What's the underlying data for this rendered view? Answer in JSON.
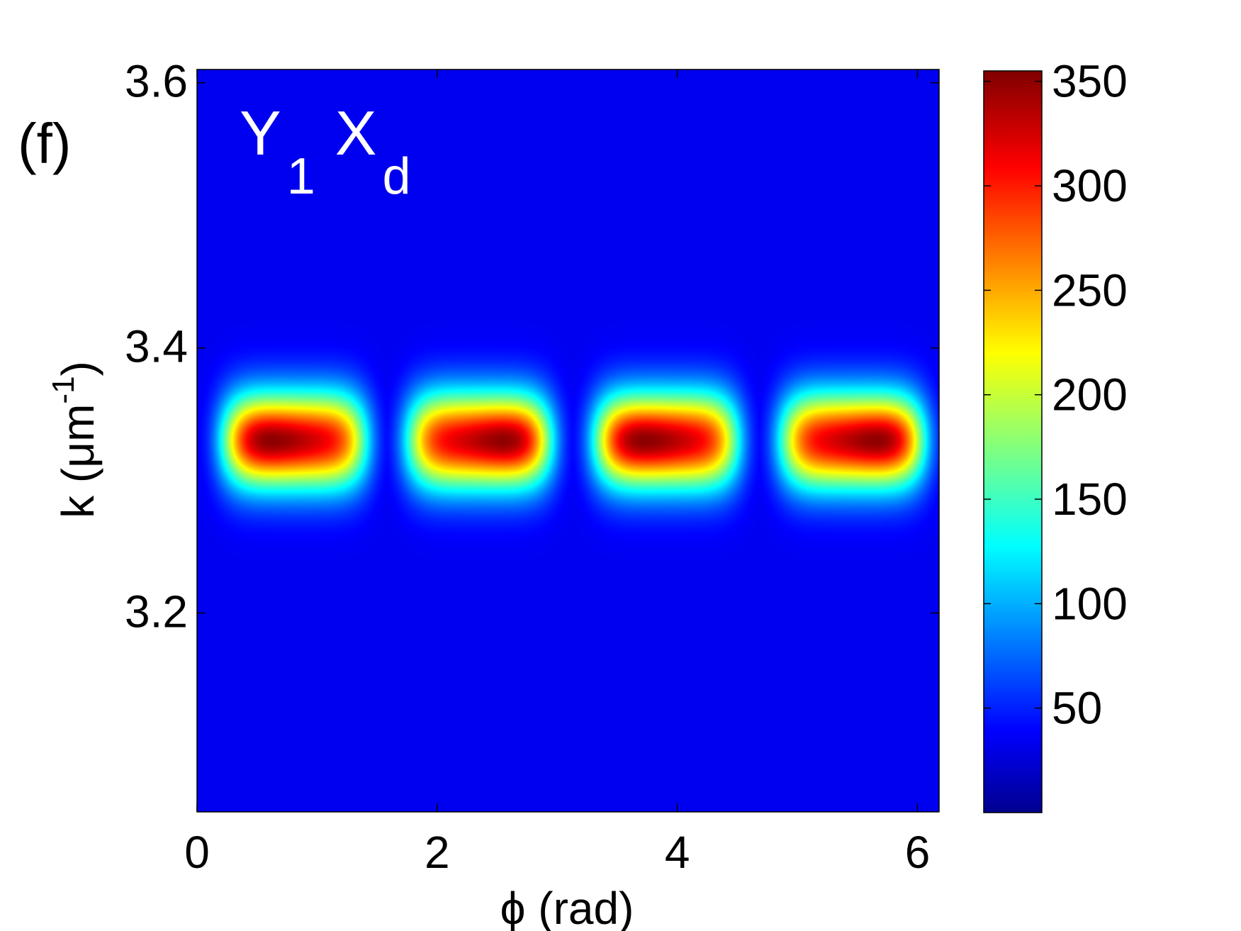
{
  "panel_label": "(f)",
  "chart_data": {
    "type": "heatmap",
    "title": "",
    "annotation": {
      "main": "Y",
      "sub1": "1",
      "main2": "X",
      "sub2": "d"
    },
    "xlabel": "ϕ (rad)",
    "ylabel": {
      "base": "k (μm",
      "sup": "-1",
      "close": ")"
    },
    "xlim": [
      0,
      6.18
    ],
    "ylim": [
      3.05,
      3.61
    ],
    "xticks": [
      0,
      2,
      4,
      6
    ],
    "xtick_labels": [
      "0",
      "2",
      "4",
      "6"
    ],
    "yticks": [
      3.2,
      3.4,
      3.6
    ],
    "ytick_labels": [
      "3.2",
      "3.4",
      "3.6"
    ],
    "colorbar": {
      "range": [
        0,
        355
      ],
      "ticks": [
        50,
        100,
        150,
        200,
        250,
        300,
        350
      ],
      "tick_labels": [
        "50",
        "100",
        "150",
        "200",
        "250",
        "300",
        "350"
      ],
      "colormap": "jet"
    },
    "blobs": [
      {
        "phi_center": 0.81,
        "phi_peak": 0.58,
        "k_center": 3.33,
        "peak": 355
      },
      {
        "phi_center": 2.35,
        "phi_peak": 2.62,
        "k_center": 3.33,
        "peak": 355
      },
      {
        "phi_center": 3.91,
        "phi_peak": 3.7,
        "k_center": 3.33,
        "peak": 355
      },
      {
        "phi_center": 5.46,
        "phi_peak": 5.72,
        "k_center": 3.33,
        "peak": 355
      }
    ],
    "blob_half_width_phi": 0.6,
    "blob_half_width_k": 0.035,
    "grid": false
  }
}
